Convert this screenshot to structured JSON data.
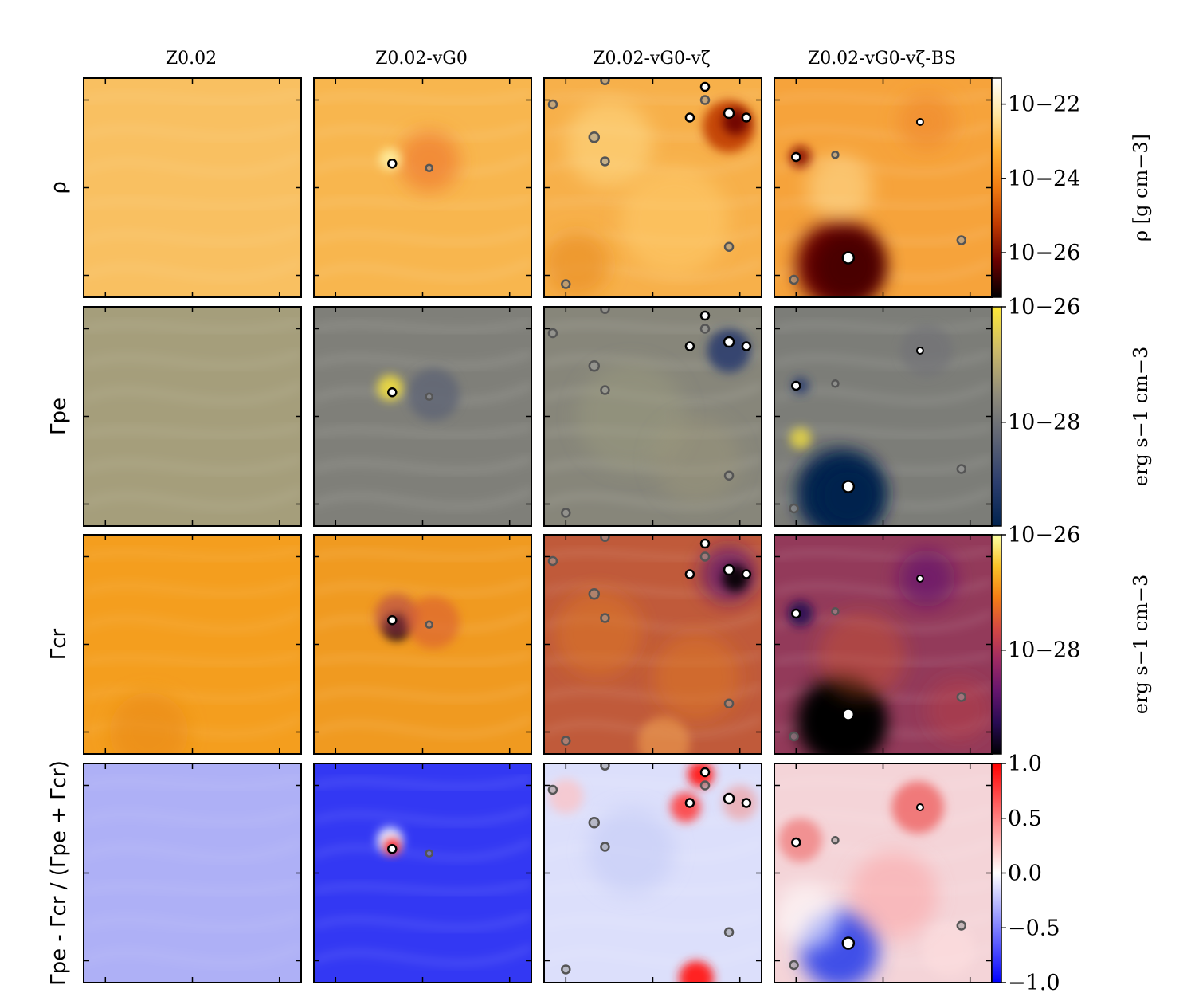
{
  "chart_data": {
    "type": "heatmap",
    "columns": [
      "Z0.02",
      "Z0.02-vG0",
      "Z0.02-vG0-vζ",
      "Z0.02-vG0-vζ-BS"
    ],
    "rows": [
      {
        "id": "rho",
        "ylabel": "ρ",
        "colormap": "afmhot",
        "colorbar": {
          "scale": "log",
          "ticks": [
            "10−22",
            "10−24",
            "10−26"
          ],
          "tick_values": [
            1e-22,
            1e-24,
            1e-26
          ],
          "label": "ρ [g cm−3]",
          "colors": [
            "#ffffff",
            "#ffe6a0",
            "#ffb030",
            "#f07a10",
            "#c03a00",
            "#6a0000",
            "#000000"
          ]
        },
        "panel_colors": [
          "#f9c061",
          "#f8b64e",
          "#f7b04a",
          "#f6a33b"
        ]
      },
      {
        "id": "gamma_pe",
        "ylabel": "Γpe",
        "colormap": "cividis",
        "colorbar": {
          "scale": "log",
          "ticks": [
            "10−26",
            "10−28"
          ],
          "tick_values": [
            1e-26,
            1e-28
          ],
          "label": "erg s−1 cm−3",
          "colors": [
            "#fee838",
            "#cbb969",
            "#8f8b7a",
            "#5e6474",
            "#2c3e6e",
            "#00224e"
          ]
        },
        "panel_colors": [
          "#a59e7b",
          "#7f7f79",
          "#87867a",
          "#7c7d78"
        ]
      },
      {
        "id": "gamma_cr",
        "ylabel": "Γcr",
        "colormap": "inferno",
        "colorbar": {
          "scale": "log",
          "ticks": [
            "10−26",
            "10−28"
          ],
          "tick_values": [
            1e-26,
            1e-28
          ],
          "label": "erg s−1 cm−3",
          "colors": [
            "#fcffa4",
            "#fac228",
            "#f57d15",
            "#d44842",
            "#9f2a63",
            "#65156e",
            "#280b53",
            "#000004"
          ]
        },
        "panel_colors": [
          "#f49e1e",
          "#f09a20",
          "#c05a3a",
          "#933a5a"
        ]
      },
      {
        "id": "ratio",
        "ylabel": "Γpe - Γcr / (Γpe + Γcr)",
        "colormap": "bwr",
        "colorbar": {
          "scale": "linear",
          "ticks": [
            "1.0",
            "0.5",
            "0.0",
            "−0.5",
            "−1.0"
          ],
          "tick_values": [
            1.0,
            0.5,
            0.0,
            -0.5,
            -1.0
          ],
          "colors": [
            "#ff0000",
            "#ffffff",
            "#0000ff"
          ]
        },
        "panel_colors": [
          "#aeb0f6",
          "#3338f3",
          "#dcdffb",
          "#f4d4d8"
        ]
      }
    ],
    "sink_markers_note": "white/grey circles mark sink particles"
  }
}
